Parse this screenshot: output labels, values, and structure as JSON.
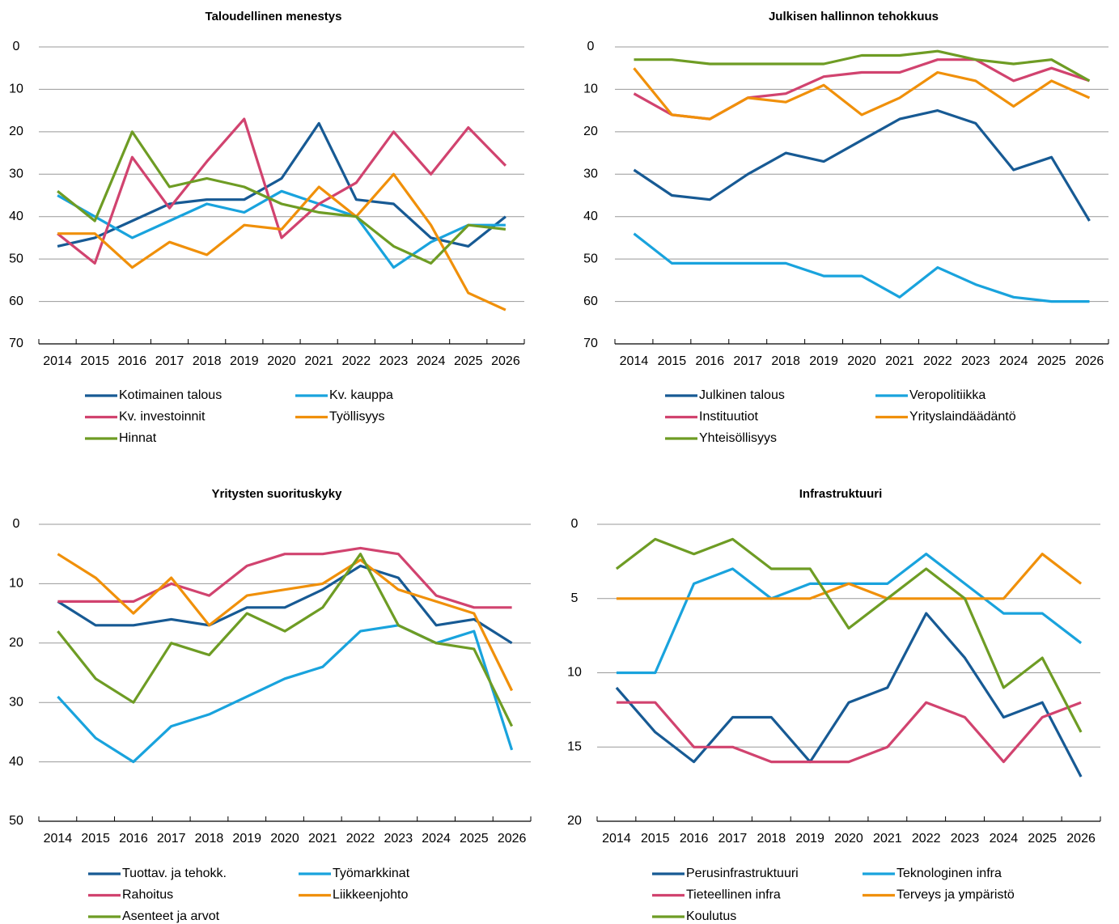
{
  "chart_data": [
    {
      "type": "line",
      "title": "Taloudellinen menestys",
      "categories": [
        "2014",
        "2015",
        "2016",
        "2017",
        "2018",
        "2019",
        "2020",
        "2021",
        "2022",
        "2023",
        "2024",
        "2025",
        "2026"
      ],
      "ylim": [
        0,
        70
      ],
      "y_reversed": true,
      "yticks": [
        0,
        10,
        20,
        30,
        40,
        50,
        60,
        70
      ],
      "grid": true,
      "series": [
        {
          "name": "Kotimainen talous",
          "color": "#175a94",
          "values": [
            47,
            45,
            41,
            37,
            36,
            36,
            31,
            18,
            36,
            37,
            45,
            47,
            40
          ]
        },
        {
          "name": "Kv. kauppa",
          "color": "#19a3dd",
          "values": [
            35,
            40,
            45,
            41,
            37,
            39,
            34,
            37,
            40,
            52,
            46,
            42,
            42
          ]
        },
        {
          "name": "Kv. investoinnit",
          "color": "#d1436f",
          "values": [
            44,
            51,
            26,
            38,
            27,
            17,
            45,
            37,
            32,
            20,
            30,
            19,
            28
          ]
        },
        {
          "name": "Työllisyys",
          "color": "#f0900a",
          "values": [
            44,
            44,
            52,
            46,
            49,
            42,
            43,
            33,
            40,
            30,
            42,
            58,
            62
          ]
        },
        {
          "name": "Hinnat",
          "color": "#6e9c24",
          "values": [
            34,
            41,
            20,
            33,
            31,
            33,
            37,
            39,
            40,
            47,
            51,
            42,
            43
          ]
        }
      ]
    },
    {
      "type": "line",
      "title": "Julkisen hallinnon tehokkuus",
      "categories": [
        "2014",
        "2015",
        "2016",
        "2017",
        "2018",
        "2019",
        "2020",
        "2021",
        "2022",
        "2023",
        "2024",
        "2025",
        "2026"
      ],
      "ylim": [
        0,
        70
      ],
      "y_reversed": true,
      "yticks": [
        0,
        10,
        20,
        30,
        40,
        50,
        60,
        70
      ],
      "grid": true,
      "series": [
        {
          "name": "Julkinen talous",
          "color": "#175a94",
          "values": [
            29,
            35,
            36,
            30,
            25,
            27,
            22,
            17,
            15,
            18,
            29,
            26,
            41
          ]
        },
        {
          "name": "Veropolitiikka",
          "color": "#19a3dd",
          "values": [
            44,
            51,
            51,
            51,
            51,
            54,
            54,
            59,
            52,
            56,
            59,
            60,
            60
          ]
        },
        {
          "name": "Instituutiot",
          "color": "#d1436f",
          "values": [
            11,
            16,
            17,
            12,
            11,
            7,
            6,
            6,
            3,
            3,
            8,
            5,
            8
          ]
        },
        {
          "name": "Yrityslaindäädäntö",
          "color": "#f0900a",
          "values": [
            5,
            16,
            17,
            12,
            13,
            9,
            16,
            12,
            6,
            8,
            14,
            8,
            12
          ]
        },
        {
          "name": "Yhteisöllisyys",
          "color": "#6e9c24",
          "values": [
            3,
            3,
            4,
            4,
            4,
            4,
            2,
            2,
            1,
            3,
            4,
            3,
            8
          ]
        }
      ]
    },
    {
      "type": "line",
      "title": "Yritysten suorituskyky",
      "categories": [
        "2014",
        "2015",
        "2016",
        "2017",
        "2018",
        "2019",
        "2020",
        "2021",
        "2022",
        "2023",
        "2024",
        "2025",
        "2026"
      ],
      "ylim": [
        0,
        50
      ],
      "y_reversed": true,
      "yticks": [
        0,
        10,
        20,
        30,
        40,
        50
      ],
      "grid": true,
      "series": [
        {
          "name": "Tuottav. ja tehokk.",
          "color": "#175a94",
          "values": [
            13,
            17,
            17,
            16,
            17,
            14,
            14,
            11,
            7,
            9,
            17,
            16,
            20
          ]
        },
        {
          "name": "Työmarkkinat",
          "color": "#19a3dd",
          "values": [
            29,
            36,
            40,
            34,
            32,
            29,
            26,
            24,
            18,
            17,
            20,
            18,
            38
          ]
        },
        {
          "name": "Rahoitus",
          "color": "#d1436f",
          "values": [
            13,
            13,
            13,
            10,
            12,
            7,
            5,
            5,
            4,
            5,
            12,
            14,
            14
          ]
        },
        {
          "name": "Liikkeenjohto",
          "color": "#f0900a",
          "values": [
            5,
            9,
            15,
            9,
            17,
            12,
            11,
            10,
            6,
            11,
            13,
            15,
            28
          ]
        },
        {
          "name": "Asenteet ja arvot",
          "color": "#6e9c24",
          "values": [
            18,
            26,
            30,
            20,
            22,
            15,
            18,
            14,
            5,
            17,
            20,
            21,
            34
          ]
        }
      ]
    },
    {
      "type": "line",
      "title": "Infrastruktuuri",
      "categories": [
        "2014",
        "2015",
        "2016",
        "2017",
        "2018",
        "2019",
        "2020",
        "2021",
        "2022",
        "2023",
        "2024",
        "2025",
        "2026"
      ],
      "ylim": [
        0,
        20
      ],
      "y_reversed": true,
      "yticks": [
        0,
        5,
        10,
        15,
        20
      ],
      "grid": true,
      "series": [
        {
          "name": "Perusinfrastruktuuri",
          "color": "#175a94",
          "values": [
            11,
            14,
            16,
            13,
            13,
            16,
            12,
            11,
            6,
            9,
            13,
            12,
            17
          ]
        },
        {
          "name": "Teknologinen infra",
          "color": "#19a3dd",
          "values": [
            10,
            10,
            4,
            3,
            5,
            4,
            4,
            4,
            2,
            4,
            6,
            6,
            8
          ]
        },
        {
          "name": "Tieteellinen infra",
          "color": "#d1436f",
          "values": [
            12,
            12,
            15,
            15,
            16,
            16,
            16,
            15,
            12,
            13,
            16,
            13,
            12
          ]
        },
        {
          "name": "Terveys ja ympäristö",
          "color": "#f0900a",
          "values": [
            5,
            5,
            5,
            5,
            5,
            5,
            4,
            5,
            5,
            5,
            5,
            2,
            4
          ]
        },
        {
          "name": "Koulutus",
          "color": "#6e9c24",
          "values": [
            3,
            1,
            2,
            1,
            3,
            3,
            7,
            5,
            3,
            5,
            11,
            9,
            14
          ]
        }
      ]
    }
  ]
}
